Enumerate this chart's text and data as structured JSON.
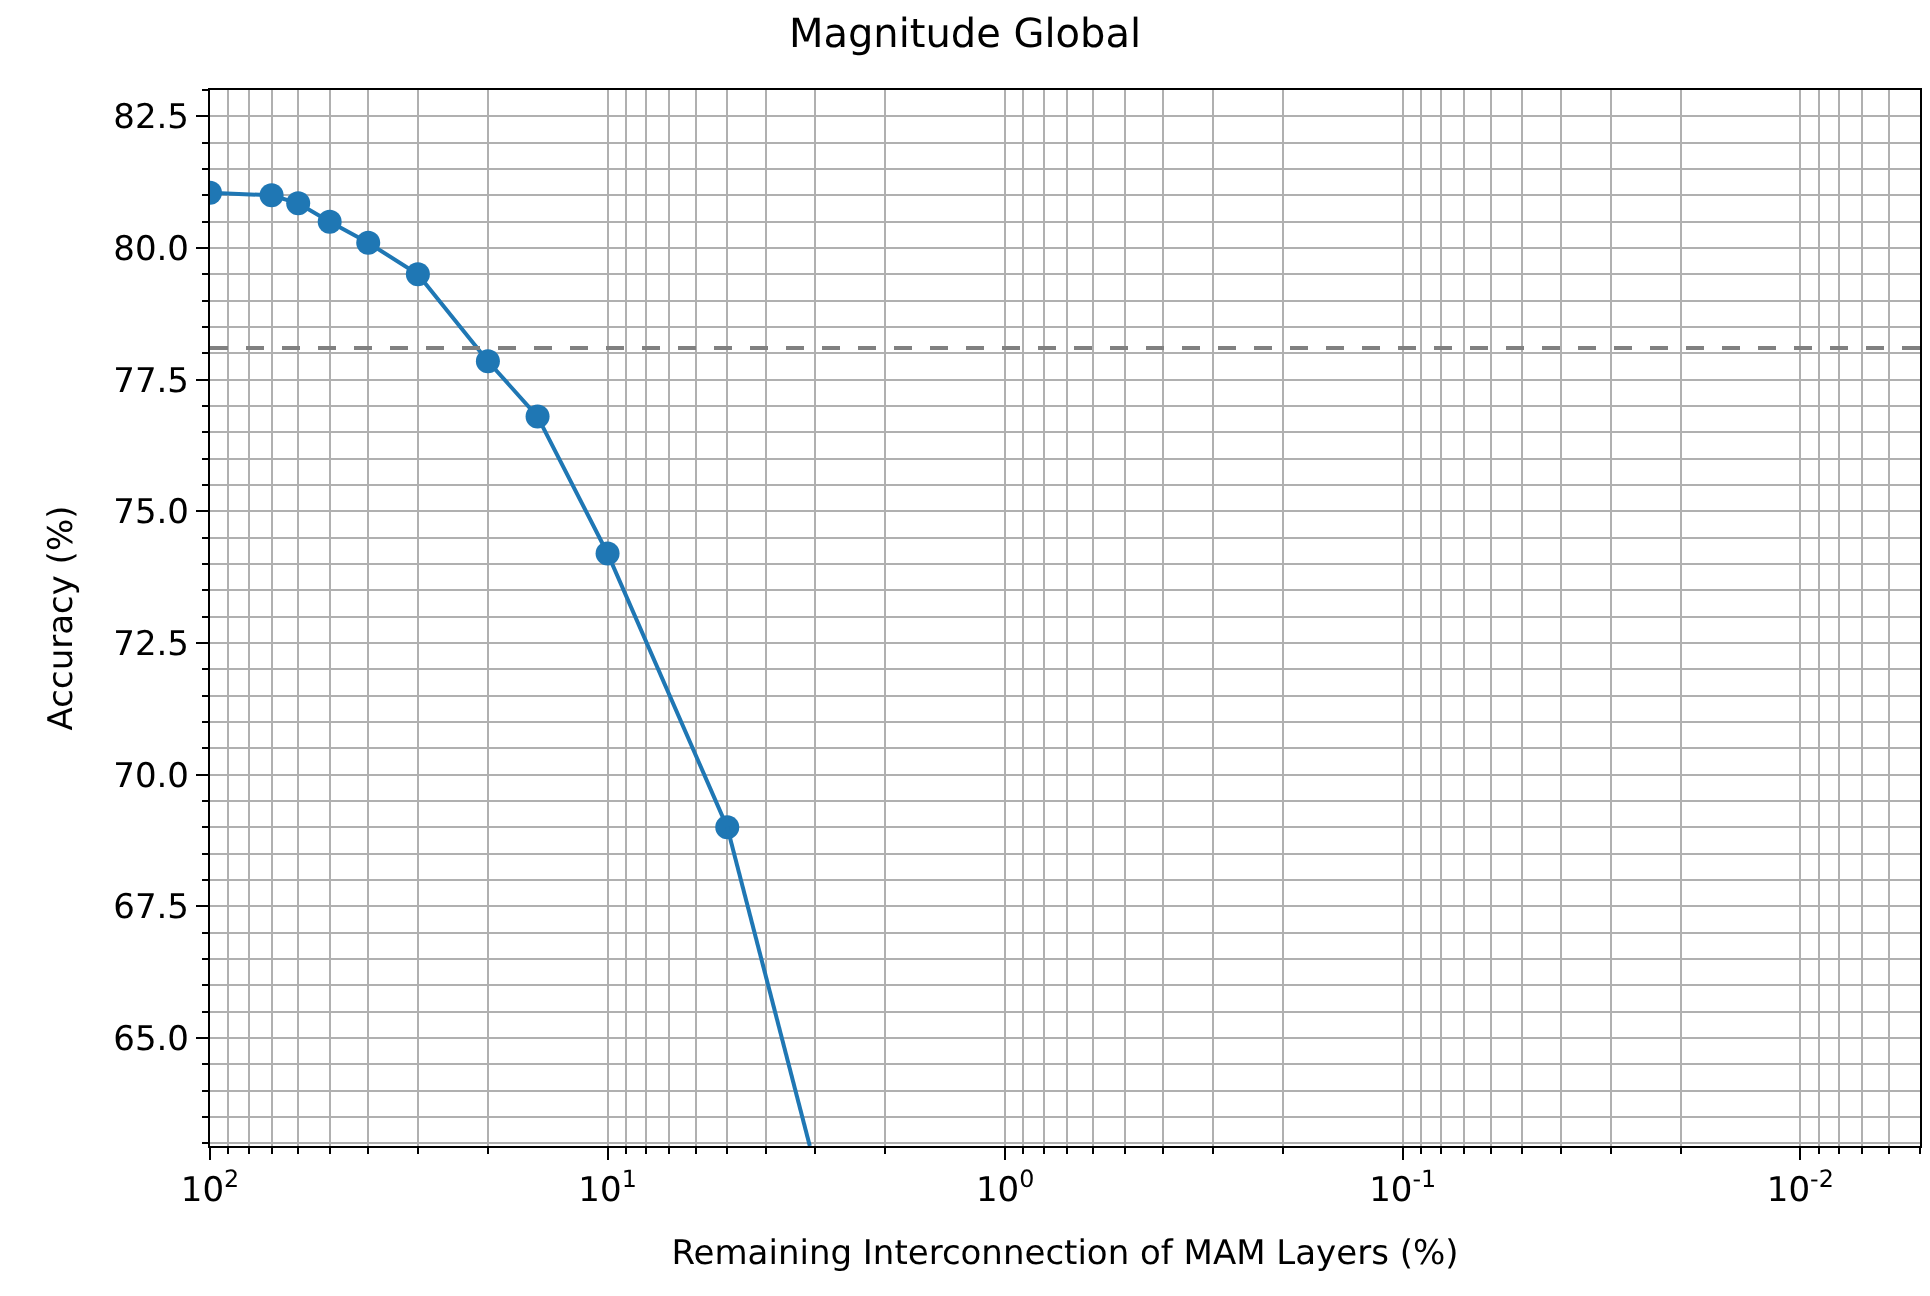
{
  "chart_data": {
    "type": "line",
    "title": "Magnitude Global",
    "xlabel": "Remaining Interconnection of MAM Layers (%)",
    "ylabel": "Accuracy (%)",
    "log": "x",
    "grid": true,
    "marker": "circle",
    "line_style": "solid",
    "xlim": [
      100,
      0.005
    ],
    "ylim": [
      62.95,
      83.0
    ],
    "xticks": [
      {
        "value": 100,
        "label": "10$^{2}$"
      },
      {
        "value": 10,
        "label": "10$^{1}$"
      },
      {
        "value": 1,
        "label": "10$^{0}$"
      },
      {
        "value": 0.1,
        "label": "10$^{-1}$"
      },
      {
        "value": 0.01,
        "label": "10$^{-2}$"
      },
      {
        "value": 90,
        "label": null
      },
      {
        "value": 80,
        "label": null
      },
      {
        "value": 70,
        "label": null
      },
      {
        "value": 60,
        "label": null
      },
      {
        "value": 50,
        "label": null
      },
      {
        "value": 40,
        "label": null
      },
      {
        "value": 30,
        "label": null
      },
      {
        "value": 20,
        "label": null
      },
      {
        "value": 9,
        "label": null
      },
      {
        "value": 8,
        "label": null
      },
      {
        "value": 7,
        "label": null
      },
      {
        "value": 6,
        "label": null
      },
      {
        "value": 5,
        "label": null
      },
      {
        "value": 4,
        "label": null
      },
      {
        "value": 3,
        "label": null
      },
      {
        "value": 2,
        "label": null
      },
      {
        "value": 0.9,
        "label": null
      },
      {
        "value": 0.8,
        "label": null
      },
      {
        "value": 0.7,
        "label": null
      },
      {
        "value": 0.6,
        "label": null
      },
      {
        "value": 0.5,
        "label": null
      },
      {
        "value": 0.4,
        "label": null
      },
      {
        "value": 0.3,
        "label": null
      },
      {
        "value": 0.2,
        "label": null
      },
      {
        "value": 0.09,
        "label": null
      },
      {
        "value": 0.08,
        "label": null
      },
      {
        "value": 0.07,
        "label": null
      },
      {
        "value": 0.06,
        "label": null
      },
      {
        "value": 0.05,
        "label": null
      },
      {
        "value": 0.04,
        "label": null
      },
      {
        "value": 0.03,
        "label": null
      },
      {
        "value": 0.02,
        "label": null
      },
      {
        "value": 0.009,
        "label": null
      },
      {
        "value": 0.008,
        "label": null
      },
      {
        "value": 0.007,
        "label": null
      },
      {
        "value": 0.006,
        "label": null
      },
      {
        "value": 0.005,
        "label": null
      }
    ],
    "yticks": [
      {
        "value": 65,
        "label": "65.0"
      },
      {
        "value": 67.5,
        "label": "67.5"
      },
      {
        "value": 70,
        "label": "70.0"
      },
      {
        "value": 72.5,
        "label": "72.5"
      },
      {
        "value": 75,
        "label": "75.0"
      },
      {
        "value": 77.5,
        "label": "77.5"
      },
      {
        "value": 80,
        "label": "80.0"
      },
      {
        "value": 82.5,
        "label": "82.5"
      },
      {
        "value": 63.0,
        "label": null
      },
      {
        "value": 63.5,
        "label": null
      },
      {
        "value": 64.0,
        "label": null
      },
      {
        "value": 64.5,
        "label": null
      },
      {
        "value": 65.5,
        "label": null
      },
      {
        "value": 66.0,
        "label": null
      },
      {
        "value": 66.5,
        "label": null
      },
      {
        "value": 67.0,
        "label": null
      },
      {
        "value": 68.0,
        "label": null
      },
      {
        "value": 68.5,
        "label": null
      },
      {
        "value": 69.0,
        "label": null
      },
      {
        "value": 69.5,
        "label": null
      },
      {
        "value": 70.5,
        "label": null
      },
      {
        "value": 71.0,
        "label": null
      },
      {
        "value": 71.5,
        "label": null
      },
      {
        "value": 72.0,
        "label": null
      },
      {
        "value": 73.0,
        "label": null
      },
      {
        "value": 73.5,
        "label": null
      },
      {
        "value": 74.0,
        "label": null
      },
      {
        "value": 74.5,
        "label": null
      },
      {
        "value": 75.5,
        "label": null
      },
      {
        "value": 76.0,
        "label": null
      },
      {
        "value": 76.5,
        "label": null
      },
      {
        "value": 77.0,
        "label": null
      },
      {
        "value": 78.0,
        "label": null
      },
      {
        "value": 78.5,
        "label": null
      },
      {
        "value": 79.0,
        "label": null
      },
      {
        "value": 79.5,
        "label": null
      },
      {
        "value": 80.5,
        "label": null
      },
      {
        "value": 81.0,
        "label": null
      },
      {
        "value": 81.5,
        "label": null
      },
      {
        "value": 82.0,
        "label": null
      },
      {
        "value": 83.0,
        "label": null
      }
    ],
    "series": [
      {
        "color": "#1f77b4",
        "x": [
          100,
          70,
          60,
          50,
          40,
          30,
          20,
          15,
          10,
          5
        ],
        "values": [
          81.05,
          81.0,
          80.85,
          80.5,
          80.1,
          79.5,
          77.85,
          76.8,
          74.2,
          69.0
        ]
      },
      {
        "color": "#1f77b4",
        "marker": "none",
        "x": [
          5,
          3.1
        ],
        "values": [
          69.0,
          62.95
        ]
      }
    ],
    "ref_lines": [
      {
        "axis": "y",
        "value": 78.1,
        "color": "#808080",
        "line_style": "dashed"
      }
    ]
  }
}
